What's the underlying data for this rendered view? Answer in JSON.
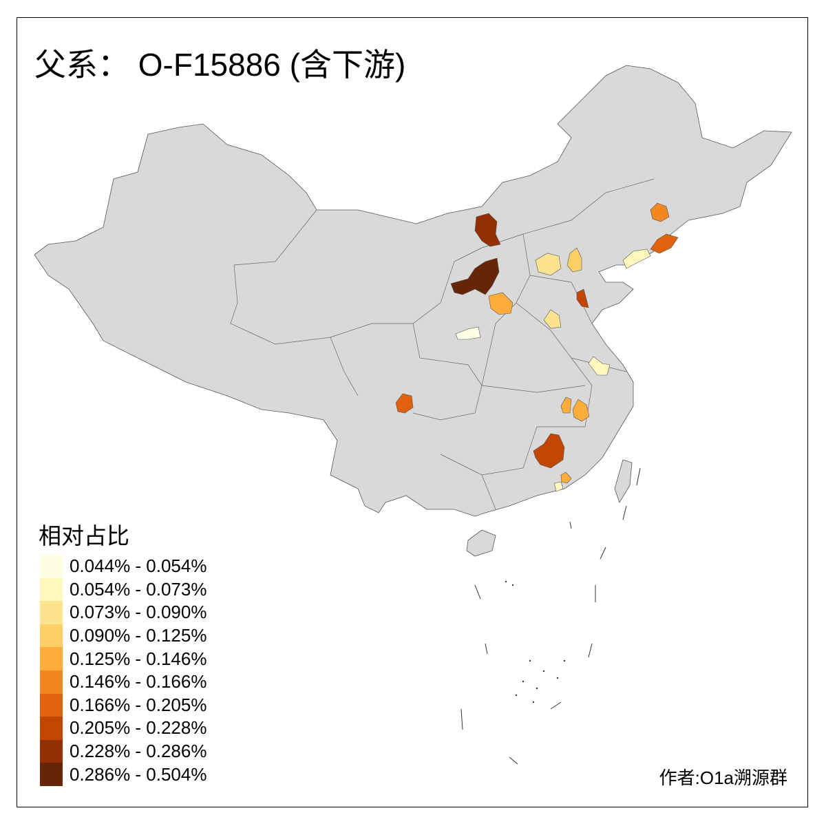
{
  "title": "父系： O-F15886 (含下游)",
  "legend": {
    "title": "相对占比",
    "items": [
      {
        "label": "0.044% - 0.054%",
        "color": "#FFFFE5"
      },
      {
        "label": "0.054% - 0.073%",
        "color": "#FFF7BC"
      },
      {
        "label": "0.073% - 0.090%",
        "color": "#FEE391"
      },
      {
        "label": "0.090% - 0.125%",
        "color": "#FECF66"
      },
      {
        "label": "0.125% - 0.146%",
        "color": "#FEAC3A"
      },
      {
        "label": "0.146% - 0.166%",
        "color": "#F3871F"
      },
      {
        "label": "0.166% - 0.205%",
        "color": "#E0620F"
      },
      {
        "label": "0.205% - 0.228%",
        "color": "#C04602"
      },
      {
        "label": "0.228% - 0.286%",
        "color": "#923004"
      },
      {
        "label": "0.286% - 0.504%",
        "color": "#662506"
      }
    ]
  },
  "map": {
    "base_color": "#D9D9D9",
    "border_color": "#555555"
  },
  "author": "作者:O1a溯源群"
}
